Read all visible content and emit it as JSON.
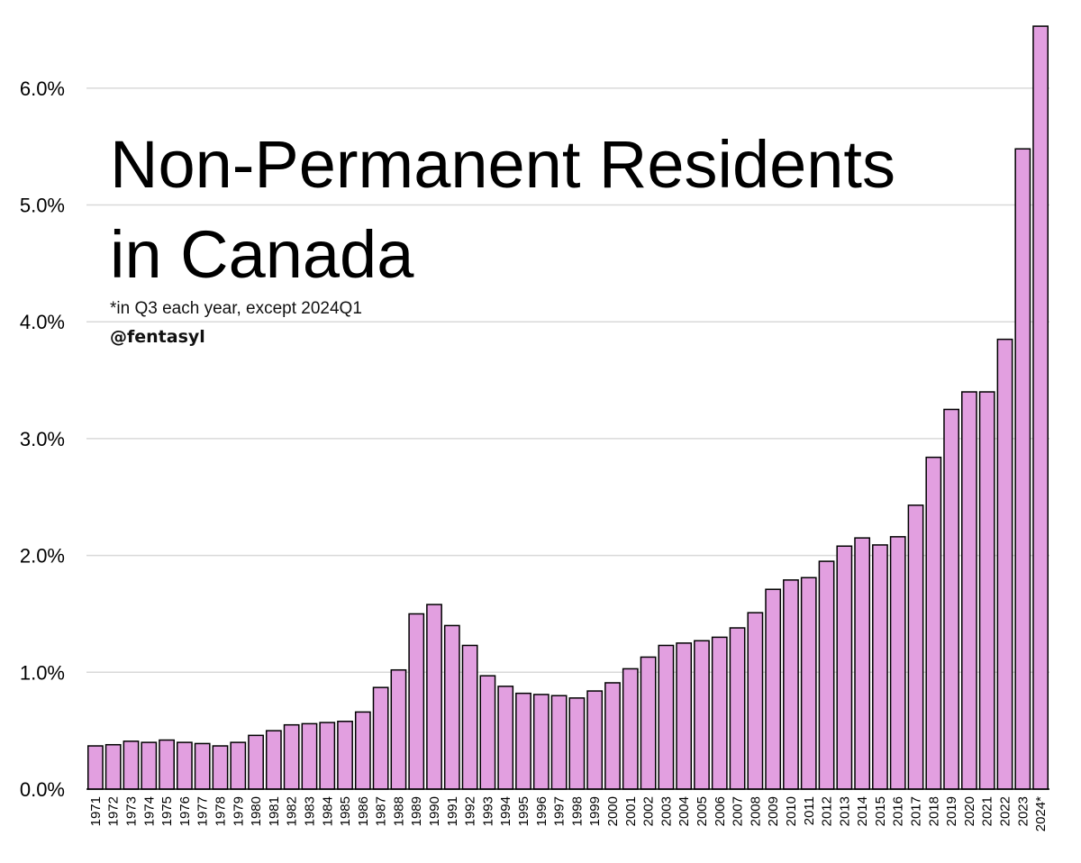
{
  "chart_data": {
    "type": "bar",
    "title": "Non-Permanent Residents in Canada",
    "title_lines": [
      "Non-Permanent Residents",
      "in Canada"
    ],
    "subtitle": "*in Q3 each year, except 2024Q1",
    "credit": "@fentasyl",
    "xlabel": "",
    "ylabel": "",
    "ylim": [
      0,
      6.6
    ],
    "yticks": [
      0,
      1,
      2,
      3,
      4,
      5,
      6
    ],
    "ytick_labels": [
      "0.0%",
      "1.0%",
      "2.0%",
      "3.0%",
      "4.0%",
      "5.0%",
      "6.0%"
    ],
    "grid": true,
    "bar_color": "#e29fe0",
    "bar_edge_color": "#000000",
    "grid_color": "#d9d9d9",
    "categories": [
      "1971",
      "1972",
      "1973",
      "1974",
      "1975",
      "1976",
      "1977",
      "1978",
      "1979",
      "1980",
      "1981",
      "1982",
      "1983",
      "1984",
      "1985",
      "1986",
      "1987",
      "1988",
      "1989",
      "1990",
      "1991",
      "1992",
      "1993",
      "1994",
      "1995",
      "1996",
      "1997",
      "1998",
      "1999",
      "2000",
      "2001",
      "2002",
      "2003",
      "2004",
      "2005",
      "2006",
      "2007",
      "2008",
      "2009",
      "2010",
      "2011",
      "2012",
      "2013",
      "2014",
      "2015",
      "2016",
      "2017",
      "2018",
      "2019",
      "2020",
      "2021",
      "2022",
      "2023",
      "2024*"
    ],
    "values": [
      0.37,
      0.38,
      0.41,
      0.4,
      0.42,
      0.4,
      0.39,
      0.37,
      0.4,
      0.46,
      0.5,
      0.55,
      0.56,
      0.57,
      0.58,
      0.66,
      0.87,
      1.02,
      1.5,
      1.58,
      1.4,
      1.23,
      0.97,
      0.88,
      0.82,
      0.81,
      0.8,
      0.78,
      0.84,
      0.91,
      1.03,
      1.13,
      1.23,
      1.25,
      1.27,
      1.3,
      1.38,
      1.51,
      1.71,
      1.79,
      1.81,
      1.95,
      2.08,
      2.15,
      2.09,
      2.16,
      2.43,
      2.84,
      3.25,
      3.4,
      3.4,
      3.85,
      5.48,
      6.53
    ]
  }
}
